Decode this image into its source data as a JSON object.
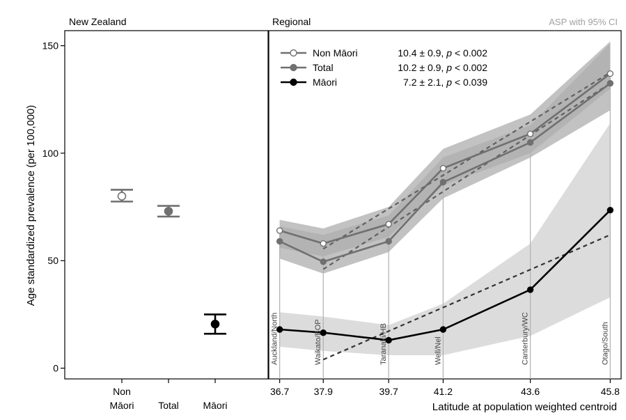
{
  "chart_data": [
    {
      "type": "scatter",
      "panel_title": "New Zealand",
      "ylabel": "Age standardized prevalence (per 100,000)",
      "ylim": [
        -5,
        157
      ],
      "yticks": [
        0,
        50,
        100,
        150
      ],
      "categories": [
        {
          "line1": "Non",
          "line2": "Māori"
        },
        {
          "line1": "Total",
          "line2": ""
        },
        {
          "line1": "Māori",
          "line2": ""
        }
      ],
      "points": [
        {
          "group": "nonmaori",
          "value": 80,
          "ci_low": 77.5,
          "ci_high": 83,
          "color": "#707070",
          "filled": false
        },
        {
          "group": "total",
          "value": 73,
          "ci_low": 70.5,
          "ci_high": 75.5,
          "color": "#707070",
          "filled": true
        },
        {
          "group": "maori",
          "value": 20.5,
          "ci_low": 16,
          "ci_high": 25,
          "color": "#000000",
          "filled": true
        }
      ]
    },
    {
      "type": "line",
      "panel_title": "Regional",
      "note": "ASP with 95% CI",
      "xlabel": "Latitude at population weighted centroid",
      "xlim": [
        36.4,
        46.1
      ],
      "xticks": [
        36.7,
        37.9,
        39.7,
        41.2,
        43.6,
        45.8
      ],
      "xtick_labels": [
        "36.7",
        "37.9",
        "39.7",
        "41.2",
        "43.6",
        "45.8"
      ],
      "regions": [
        "Auckland/North",
        "Waikato/BOP",
        "Taranaki/HB",
        "Well/Nel",
        "Canterbury/WC",
        "Otago/South"
      ],
      "series": [
        {
          "key": "nonmaori",
          "name": "Non Māori",
          "stat_value": "10.4",
          "stat_pm": "0.9",
          "p_text": "p",
          "p_rest": " < 0.002",
          "color": "#707070",
          "marker": "open",
          "x": [
            36.7,
            37.9,
            39.7,
            41.2,
            43.6,
            45.8
          ],
          "y": [
            64,
            58,
            67,
            93,
            109,
            137
          ],
          "ci_upper": [
            66,
            62,
            71,
            98,
            113,
            151
          ],
          "ci_lower": [
            56,
            52,
            61,
            85,
            100,
            130
          ],
          "trend": [
            [
              37.9,
              55.5
            ],
            [
              45.8,
              137.5
            ]
          ]
        },
        {
          "key": "total",
          "name": "Total",
          "stat_value": "10.2",
          "stat_pm": "0.9",
          "p_text": "p",
          "p_rest": " < 0.002",
          "color": "#707070",
          "marker": "filled",
          "x": [
            36.7,
            37.9,
            39.7,
            41.2,
            43.6,
            45.8
          ],
          "y": [
            59,
            49.5,
            59,
            86.5,
            105,
            132.5
          ],
          "ci_upper": [
            69,
            65,
            75,
            102,
            118,
            152
          ],
          "ci_lower": [
            51,
            44,
            54,
            79,
            98,
            120
          ],
          "trend": [
            [
              37.9,
              46
            ],
            [
              45.8,
              132.5
            ]
          ]
        },
        {
          "key": "maori",
          "name": "Māori",
          "stat_value": "7.2",
          "stat_pm": "2.1",
          "p_text": "p",
          "p_rest": " < 0.039",
          "color": "#000000",
          "marker": "filled",
          "x": [
            36.7,
            37.9,
            39.7,
            41.2,
            43.6,
            45.8
          ],
          "y": [
            18,
            16.5,
            13,
            18,
            36.5,
            73.5
          ],
          "ci_upper": [
            26,
            24,
            20,
            30,
            58,
            114
          ],
          "ci_lower": [
            10,
            8,
            6,
            6,
            15,
            33
          ],
          "trend": [
            [
              37.9,
              4
            ],
            [
              45.8,
              62
            ]
          ]
        }
      ]
    }
  ]
}
